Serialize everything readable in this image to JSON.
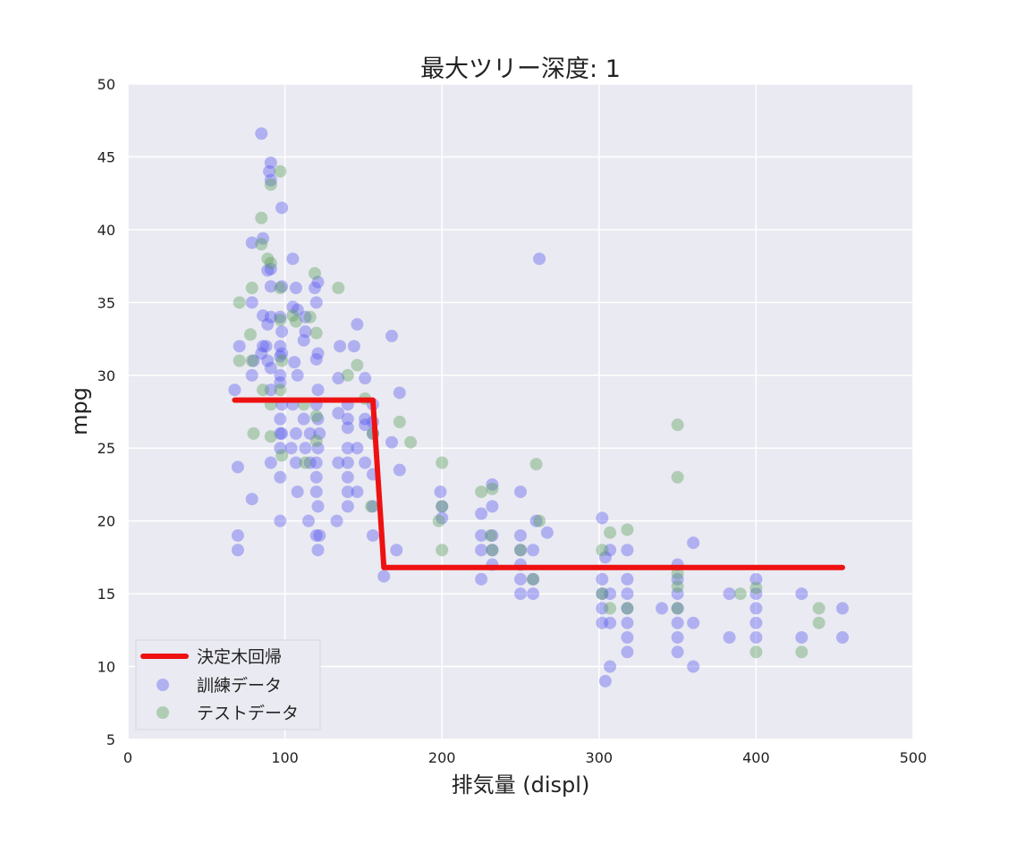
{
  "chart_data": {
    "type": "scatter",
    "title": "最大ツリー深度: 1",
    "xlabel": "排気量 (displ)",
    "ylabel": "mpg",
    "xlim": [
      0,
      500
    ],
    "ylim": [
      5,
      50
    ],
    "xticks": [
      0,
      100,
      200,
      300,
      400,
      500
    ],
    "yticks": [
      5,
      10,
      15,
      20,
      25,
      30,
      35,
      40,
      45,
      50
    ],
    "grid": true,
    "legend_position": "bottom-left",
    "colors": {
      "background": "#eaeaf2",
      "grid": "#ffffff",
      "regression": "#ee1111",
      "train": "#5a5af0",
      "test": "#5aa05a"
    },
    "series": [
      {
        "name": "決定木回帰",
        "kind": "line",
        "x": [
          68,
          156,
          163,
          455
        ],
        "y": [
          28.3,
          28.3,
          16.8,
          16.8
        ]
      },
      {
        "name": "訓練データ",
        "kind": "scatter",
        "points": [
          [
            85,
            46.6
          ],
          [
            91,
            44.6
          ],
          [
            90,
            44.0
          ],
          [
            91,
            43.4
          ],
          [
            98,
            41.5
          ],
          [
            79,
            39.1
          ],
          [
            86,
            39.4
          ],
          [
            262,
            38.0
          ],
          [
            105,
            38.0
          ],
          [
            89,
            37.2
          ],
          [
            91,
            37.3
          ],
          [
            98,
            36.1
          ],
          [
            121,
            36.4
          ],
          [
            119,
            36.0
          ],
          [
            107,
            36.0
          ],
          [
            91,
            36.1
          ],
          [
            79,
            35.0
          ],
          [
            105,
            34.7
          ],
          [
            120,
            35.0
          ],
          [
            86,
            34.1
          ],
          [
            97,
            34.0
          ],
          [
            91,
            34.0
          ],
          [
            113,
            34.0
          ],
          [
            108,
            34.5
          ],
          [
            89,
            33.5
          ],
          [
            98,
            33.0
          ],
          [
            146,
            33.5
          ],
          [
            113,
            33.0
          ],
          [
            86,
            32.0
          ],
          [
            88,
            32.0
          ],
          [
            71,
            32.0
          ],
          [
            97,
            32.0
          ],
          [
            98,
            31.5
          ],
          [
            112,
            32.4
          ],
          [
            135,
            32.0
          ],
          [
            144,
            32.0
          ],
          [
            168,
            32.7
          ],
          [
            89,
            31.0
          ],
          [
            85,
            31.5
          ],
          [
            80,
            31.0
          ],
          [
            97,
            31.3
          ],
          [
            106,
            30.9
          ],
          [
            120,
            31.1
          ],
          [
            121,
            31.5
          ],
          [
            91,
            30.5
          ],
          [
            97,
            30.0
          ],
          [
            108,
            30.0
          ],
          [
            79,
            30.0
          ],
          [
            134,
            29.8
          ],
          [
            91,
            29.0
          ],
          [
            68,
            29.0
          ],
          [
            97,
            29.5
          ],
          [
            121,
            29.0
          ],
          [
            151,
            29.8
          ],
          [
            98,
            28.0
          ],
          [
            120,
            28.0
          ],
          [
            105,
            28.0
          ],
          [
            140,
            28.0
          ],
          [
            156,
            28.0
          ],
          [
            173,
            28.8
          ],
          [
            97,
            27.0
          ],
          [
            121,
            27.0
          ],
          [
            112,
            27.0
          ],
          [
            140,
            27.0
          ],
          [
            151,
            27.0
          ],
          [
            134,
            27.4
          ],
          [
            156,
            26.8
          ],
          [
            97,
            26.0
          ],
          [
            98,
            26.0
          ],
          [
            107,
            26.0
          ],
          [
            116,
            26.0
          ],
          [
            122,
            26.0
          ],
          [
            140,
            26.4
          ],
          [
            151,
            26.6
          ],
          [
            156,
            26.0
          ],
          [
            97,
            25.0
          ],
          [
            104,
            25.0
          ],
          [
            113,
            25.0
          ],
          [
            121,
            25.0
          ],
          [
            140,
            25.0
          ],
          [
            168,
            25.4
          ],
          [
            146,
            25.0
          ],
          [
            91,
            24.0
          ],
          [
            107,
            24.0
          ],
          [
            120,
            24.0
          ],
          [
            116,
            24.0
          ],
          [
            140,
            24.0
          ],
          [
            134,
            24.0
          ],
          [
            151,
            24.0
          ],
          [
            70,
            23.7
          ],
          [
            97,
            23.0
          ],
          [
            120,
            23.0
          ],
          [
            140,
            23.0
          ],
          [
            173,
            23.5
          ],
          [
            156,
            23.2
          ],
          [
            120,
            22.0
          ],
          [
            140,
            22.0
          ],
          [
            108,
            22.0
          ],
          [
            146,
            22.0
          ],
          [
            199,
            22.0
          ],
          [
            250,
            22.0
          ],
          [
            232,
            22.5
          ],
          [
            79,
            21.5
          ],
          [
            121,
            21.0
          ],
          [
            140,
            21.0
          ],
          [
            156,
            21.0
          ],
          [
            200,
            21.0
          ],
          [
            232,
            21.0
          ],
          [
            97,
            20.0
          ],
          [
            115,
            20.0
          ],
          [
            133,
            20.0
          ],
          [
            200,
            20.2
          ],
          [
            225,
            20.5
          ],
          [
            260,
            20.0
          ],
          [
            302,
            20.2
          ],
          [
            70,
            19.0
          ],
          [
            120,
            19.0
          ],
          [
            122,
            19.0
          ],
          [
            156,
            19.0
          ],
          [
            225,
            19.0
          ],
          [
            232,
            19.0
          ],
          [
            250,
            19.0
          ],
          [
            267,
            19.2
          ],
          [
            70,
            18.0
          ],
          [
            121,
            18.0
          ],
          [
            171,
            18.0
          ],
          [
            225,
            18.0
          ],
          [
            232,
            18.0
          ],
          [
            250,
            18.0
          ],
          [
            258,
            18.0
          ],
          [
            318,
            18.0
          ],
          [
            307,
            18.0
          ],
          [
            360,
            18.5
          ],
          [
            163,
            16.2
          ],
          [
            225,
            16.0
          ],
          [
            250,
            16.0
          ],
          [
            258,
            16.0
          ],
          [
            302,
            16.0
          ],
          [
            318,
            16.0
          ],
          [
            350,
            16.0
          ],
          [
            400,
            16.0
          ],
          [
            304,
            17.5
          ],
          [
            350,
            17.0
          ],
          [
            250,
            17.0
          ],
          [
            232,
            17.0
          ],
          [
            250,
            15.0
          ],
          [
            258,
            15.0
          ],
          [
            302,
            15.0
          ],
          [
            307,
            15.0
          ],
          [
            318,
            15.0
          ],
          [
            350,
            15.0
          ],
          [
            383,
            15.0
          ],
          [
            400,
            15.0
          ],
          [
            429,
            15.0
          ],
          [
            302,
            14.0
          ],
          [
            318,
            14.0
          ],
          [
            340,
            14.0
          ],
          [
            350,
            14.0
          ],
          [
            400,
            14.0
          ],
          [
            455,
            14.0
          ],
          [
            302,
            13.0
          ],
          [
            307,
            13.0
          ],
          [
            318,
            13.0
          ],
          [
            350,
            13.0
          ],
          [
            360,
            13.0
          ],
          [
            400,
            13.0
          ],
          [
            318,
            12.0
          ],
          [
            350,
            12.0
          ],
          [
            383,
            12.0
          ],
          [
            400,
            12.0
          ],
          [
            429,
            12.0
          ],
          [
            455,
            12.0
          ],
          [
            318,
            11.0
          ],
          [
            350,
            11.0
          ],
          [
            307,
            10.0
          ],
          [
            360,
            10.0
          ],
          [
            304,
            9.0
          ]
        ]
      },
      {
        "name": "テストデータ",
        "kind": "scatter",
        "points": [
          [
            97,
            44.0
          ],
          [
            91,
            43.1
          ],
          [
            85,
            40.8
          ],
          [
            85,
            39.0
          ],
          [
            89,
            38.0
          ],
          [
            91,
            37.7
          ],
          [
            119,
            37.0
          ],
          [
            97,
            36.0
          ],
          [
            79,
            36.0
          ],
          [
            134,
            36.0
          ],
          [
            71,
            35.0
          ],
          [
            105,
            34.1
          ],
          [
            116,
            34.0
          ],
          [
            97,
            33.8
          ],
          [
            107,
            33.7
          ],
          [
            120,
            32.9
          ],
          [
            78,
            32.8
          ],
          [
            71,
            31.0
          ],
          [
            79,
            31.0
          ],
          [
            98,
            31.0
          ],
          [
            140,
            30.0
          ],
          [
            146,
            30.7
          ],
          [
            97,
            29.0
          ],
          [
            86,
            29.0
          ],
          [
            151,
            28.4
          ],
          [
            91,
            28.0
          ],
          [
            112,
            28.0
          ],
          [
            120,
            27.2
          ],
          [
            173,
            26.8
          ],
          [
            156,
            26.0
          ],
          [
            80,
            26.0
          ],
          [
            120,
            25.5
          ],
          [
            180,
            25.4
          ],
          [
            98,
            24.5
          ],
          [
            113,
            24.0
          ],
          [
            200,
            24.0
          ],
          [
            260,
            23.9
          ],
          [
            91,
            25.8
          ],
          [
            350,
            26.6
          ],
          [
            350,
            23.0
          ],
          [
            225,
            22.0
          ],
          [
            232,
            22.2
          ],
          [
            200,
            21.0
          ],
          [
            155,
            21.0
          ],
          [
            198,
            20.0
          ],
          [
            262,
            20.0
          ],
          [
            231,
            19.0
          ],
          [
            250,
            18.0
          ],
          [
            307,
            19.2
          ],
          [
            318,
            19.4
          ],
          [
            200,
            18.0
          ],
          [
            302,
            18.0
          ],
          [
            350,
            16.4
          ],
          [
            258,
            16.0
          ],
          [
            350,
            15.5
          ],
          [
            390,
            15.0
          ],
          [
            400,
            15.4
          ],
          [
            307,
            14.0
          ],
          [
            318,
            14.0
          ],
          [
            350,
            14.0
          ],
          [
            440,
            14.0
          ],
          [
            440,
            13.0
          ],
          [
            400,
            11.0
          ],
          [
            429,
            11.0
          ],
          [
            302,
            15.0
          ],
          [
            232,
            18.0
          ]
        ]
      }
    ]
  }
}
